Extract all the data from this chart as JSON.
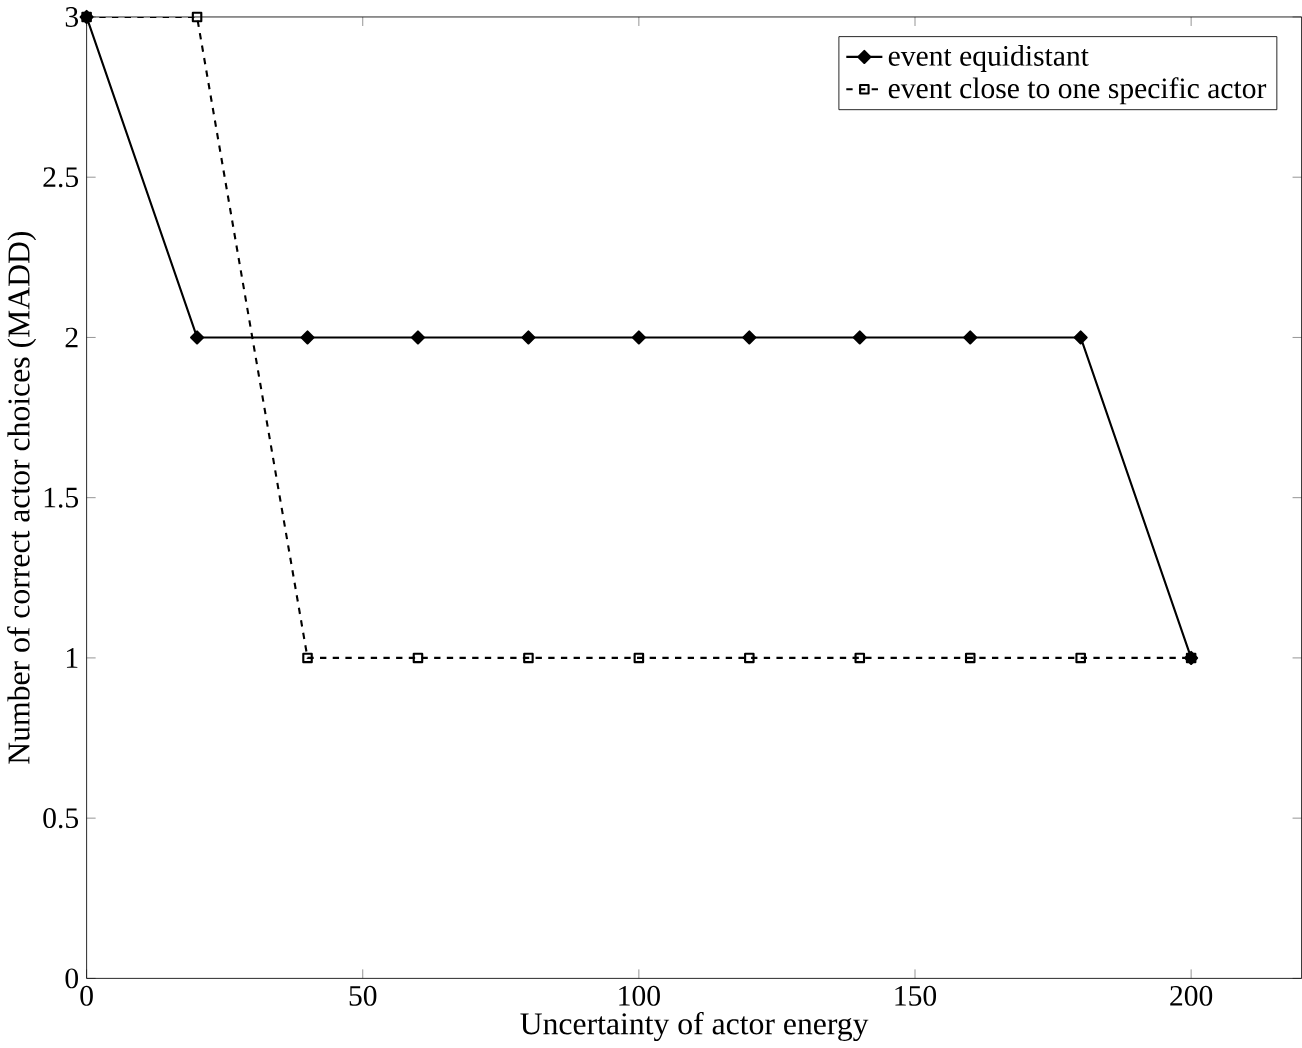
{
  "chart_data": {
    "type": "line",
    "xlabel": "Uncertainty of actor energy",
    "ylabel": "Number of correct actor choices (MADD)",
    "xlim": [
      0,
      220
    ],
    "xticks": [
      0,
      50,
      100,
      150,
      200
    ],
    "ylim": [
      0,
      3
    ],
    "yticks": [
      0,
      0.5,
      1,
      1.5,
      2,
      2.5,
      3
    ],
    "legend": "top right",
    "grid": false,
    "series": [
      {
        "name": "event equidistant",
        "color": "#000000",
        "marker": "diamond",
        "line_style": "solid",
        "x": [
          0,
          20,
          40,
          60,
          80,
          100,
          120,
          140,
          160,
          180,
          200
        ],
        "values": [
          3,
          2,
          2,
          2,
          2,
          2,
          2,
          2,
          2,
          2,
          1
        ]
      },
      {
        "name": "event close to one specific actor",
        "color": "#000000",
        "marker": "square",
        "line_style": "dashed",
        "x": [
          0,
          20,
          40,
          60,
          80,
          100,
          120,
          140,
          160,
          180,
          200
        ],
        "values": [
          3,
          3,
          1,
          1,
          1,
          1,
          1,
          1,
          1,
          1,
          1
        ]
      }
    ]
  }
}
